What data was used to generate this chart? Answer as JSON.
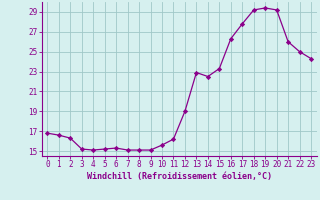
{
  "x": [
    0,
    1,
    2,
    3,
    4,
    5,
    6,
    7,
    8,
    9,
    10,
    11,
    12,
    13,
    14,
    15,
    16,
    17,
    18,
    19,
    20,
    21,
    22,
    23
  ],
  "y": [
    16.8,
    16.6,
    16.3,
    15.2,
    15.1,
    15.2,
    15.3,
    15.1,
    15.1,
    15.1,
    15.6,
    16.2,
    19.0,
    22.9,
    22.5,
    23.3,
    26.3,
    27.8,
    29.2,
    29.4,
    29.2,
    26.0,
    25.0,
    24.3
  ],
  "line_color": "#8B008B",
  "marker": "D",
  "marker_size": 2.2,
  "bg_color": "#d6f0ef",
  "grid_color": "#a0c8c8",
  "xlabel": "Windchill (Refroidissement éolien,°C)",
  "xlabel_color": "#8B008B",
  "tick_color": "#8B008B",
  "ylim": [
    14.5,
    30.0
  ],
  "yticks": [
    15,
    17,
    19,
    21,
    23,
    25,
    27,
    29
  ],
  "xlim": [
    -0.5,
    23.5
  ],
  "tick_fontsize": 5.5,
  "xlabel_fontsize": 6.0
}
